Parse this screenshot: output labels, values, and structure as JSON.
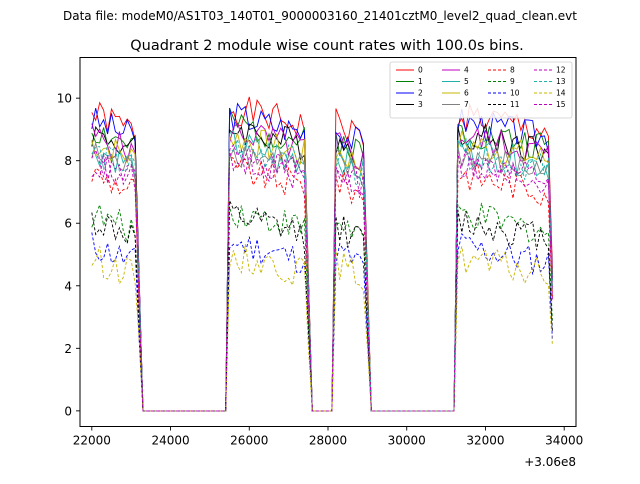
{
  "chart_data": {
    "type": "line",
    "suptitle": "Data file: modeM0/AS1T03_140T01_9000003160_21401cztM0_level2_quad_clean.evt",
    "title": "Quadrant 2 module wise count rates with 100.0s bins.",
    "xlabel": "",
    "ylabel": "",
    "x_offset_label": "+3.06e8",
    "xlim": [
      21700,
      34300
    ],
    "ylim": [
      -0.5,
      11.3
    ],
    "x_ticks": [
      22000,
      24000,
      26000,
      28000,
      30000,
      32000,
      34000
    ],
    "x_tick_labels": [
      "22000",
      "24000",
      "26000",
      "28000",
      "30000",
      "32000",
      "34000"
    ],
    "y_ticks": [
      0,
      2,
      4,
      6,
      8,
      10
    ],
    "y_tick_labels": [
      "0",
      "2",
      "4",
      "6",
      "8",
      "10"
    ],
    "grid": false,
    "legend_position": "top-right",
    "legend_columns": 4,
    "good_time_intervals": [
      [
        22000,
        23200
      ],
      [
        25500,
        27500
      ],
      [
        28200,
        29000
      ],
      [
        31300,
        33700
      ]
    ],
    "series": [
      {
        "name": "0",
        "color": "#ff0000",
        "style": "solid",
        "level": 9.5
      },
      {
        "name": "1",
        "color": "#008000",
        "style": "solid",
        "level": 9.0
      },
      {
        "name": "2",
        "color": "#0000ff",
        "style": "solid",
        "level": 9.3
      },
      {
        "name": "3",
        "color": "#000000",
        "style": "solid",
        "level": 8.9
      },
      {
        "name": "4",
        "color": "#bf00bf",
        "style": "solid",
        "level": 8.8
      },
      {
        "name": "5",
        "color": "#20b2aa",
        "style": "solid",
        "level": 8.4
      },
      {
        "name": "6",
        "color": "#c8b400",
        "style": "solid",
        "level": 8.6
      },
      {
        "name": "7",
        "color": "#808080",
        "style": "solid",
        "level": 8.2
      },
      {
        "name": "8",
        "color": "#ff0000",
        "style": "dashed",
        "level": 7.6
      },
      {
        "name": "9",
        "color": "#008000",
        "style": "dashed",
        "level": 6.3
      },
      {
        "name": "10",
        "color": "#0000ff",
        "style": "dashed",
        "level": 5.3
      },
      {
        "name": "11",
        "color": "#000000",
        "style": "dashed",
        "level": 6.1
      },
      {
        "name": "12",
        "color": "#bf00bf",
        "style": "dashed",
        "level": 8.0
      },
      {
        "name": "13",
        "color": "#20b2aa",
        "style": "dashed",
        "level": 8.3
      },
      {
        "name": "14",
        "color": "#c8b400",
        "style": "dashed",
        "level": 4.9
      },
      {
        "name": "15",
        "color": "#bf00bf",
        "style": "dashed",
        "level": 7.9
      }
    ]
  }
}
